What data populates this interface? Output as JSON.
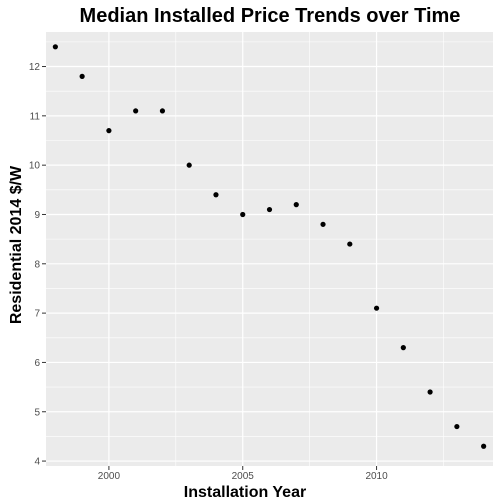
{
  "chart_data": {
    "type": "scatter",
    "title": "Median Installed Price Trends over Time",
    "xlabel": "Installation Year",
    "ylabel": "Residential 2014 $/W",
    "xlim": [
      1997.65,
      2014.35
    ],
    "ylim": [
      3.9,
      12.7
    ],
    "x_ticks": [
      2000,
      2005,
      2010
    ],
    "x_minor_ticks": [
      1997.5,
      2002.5,
      2007.5,
      2012.5
    ],
    "y_ticks": [
      4,
      5,
      6,
      7,
      8,
      9,
      10,
      11,
      12
    ],
    "y_minor_ticks": [
      4.5,
      5.5,
      6.5,
      7.5,
      8.5,
      9.5,
      10.5,
      11.5,
      12.5
    ],
    "grid": true,
    "colors": {
      "panel": "#ebebeb",
      "grid": "#ffffff",
      "point": "#000000",
      "tick": "#4d4d4d"
    },
    "points": [
      {
        "x": 1998,
        "y": 12.4
      },
      {
        "x": 1999,
        "y": 11.8
      },
      {
        "x": 2000,
        "y": 10.7
      },
      {
        "x": 2001,
        "y": 11.1
      },
      {
        "x": 2002,
        "y": 11.1
      },
      {
        "x": 2003,
        "y": 10.0
      },
      {
        "x": 2004,
        "y": 9.4
      },
      {
        "x": 2005,
        "y": 9.0
      },
      {
        "x": 2006,
        "y": 9.1
      },
      {
        "x": 2007,
        "y": 9.2
      },
      {
        "x": 2008,
        "y": 8.8
      },
      {
        "x": 2009,
        "y": 8.4
      },
      {
        "x": 2010,
        "y": 7.1
      },
      {
        "x": 2011,
        "y": 6.3
      },
      {
        "x": 2012,
        "y": 5.4
      },
      {
        "x": 2013,
        "y": 4.7
      },
      {
        "x": 2014,
        "y": 4.3
      }
    ]
  }
}
